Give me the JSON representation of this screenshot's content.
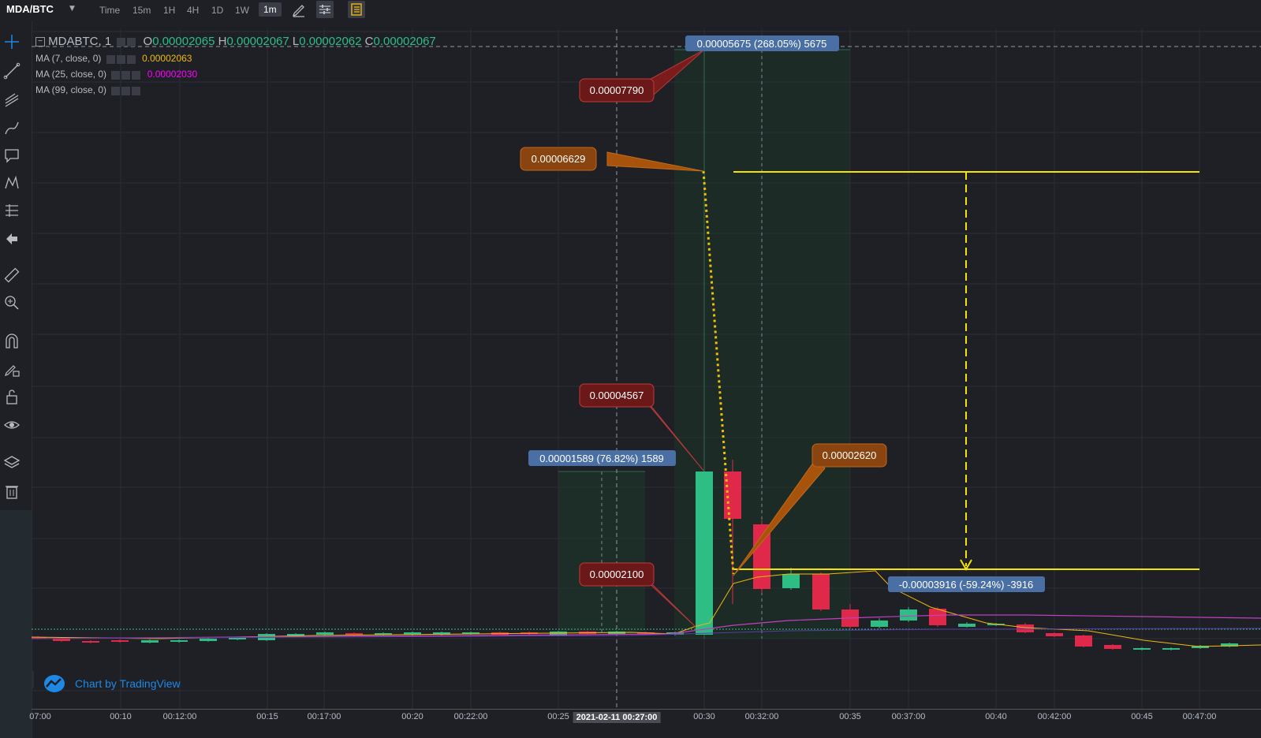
{
  "topbar": {
    "symbol": "MDA/BTC",
    "timeframes": [
      "Time",
      "15m",
      "1H",
      "4H",
      "1D",
      "1W"
    ],
    "active_timeframe": "1m"
  },
  "legend": {
    "main": {
      "name": "MDABTC, 1",
      "o_label": "O",
      "o": "0.00002065",
      "h_label": "H",
      "h": "0.00002067",
      "l_label": "L",
      "l": "0.00002062",
      "c_label": "C",
      "c": "0.00002067"
    },
    "ma7": {
      "label": "MA (7, close, 0)",
      "value": "0.00002063",
      "color": "#f0b90b"
    },
    "ma25": {
      "label": "MA (25, close, 0)",
      "value": "0.00002030",
      "color": "#ff00ff"
    },
    "ma99": {
      "label": "MA (99, close, 0)"
    }
  },
  "annotations": {
    "measure_top": "0.00005675 (268.05%) 5675",
    "measure_left": "0.00001589 (76.82%) 1589",
    "measure_right": "-0.00003916 (-59.24%) -3916",
    "callout_high": "0.00007790",
    "callout_6629": "0.00006629",
    "callout_4567": "0.00004567",
    "callout_2620": "0.00002620",
    "callout_2100": "0.00002100"
  },
  "xaxis": {
    "ticks": [
      "07:00",
      "00:10",
      "00:12:00",
      "00:15",
      "00:17:00",
      "00:20",
      "00:22:00",
      "00:25",
      "2021-02-11 00:27:00",
      "00:30",
      "00:32:00",
      "00:35",
      "00:37:00",
      "00:40",
      "00:42:00",
      "00:45",
      "00:47:00"
    ]
  },
  "attribution": "Chart by TradingView",
  "colors": {
    "up": "#2ebd85",
    "down": "#e0294a",
    "bg": "#1e2026",
    "grid": "#2b2e35",
    "yellow": "#f5e400",
    "callout_red": "#7a1c1c",
    "callout_orange": "#a8530b",
    "measure_blue": "#4a6fa5"
  },
  "icons": [
    "crosshair-icon",
    "trend-line-icon",
    "fib-icon",
    "brush-icon",
    "comment-icon",
    "pattern-icon",
    "prediction-icon",
    "back-arrow-icon",
    "ruler-icon",
    "zoom-in-icon",
    "magnet-icon",
    "lock-drawing-icon",
    "unlock-icon",
    "eye-icon",
    "layers-icon",
    "trash-icon"
  ]
}
